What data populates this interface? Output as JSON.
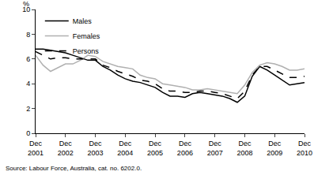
{
  "chart_data": {
    "type": "line",
    "y_label": "%",
    "source": "Source: Labour Force, Australia, cat. no. 6202.0.",
    "categories": [
      "Dec 2001",
      null,
      null,
      null,
      "Dec 2002",
      null,
      null,
      null,
      "Dec 2003",
      null,
      null,
      null,
      "Dec 2004",
      null,
      null,
      null,
      "Dec 2005",
      null,
      null,
      null,
      "Dec 2006",
      null,
      null,
      null,
      "Dec 2007",
      null,
      null,
      null,
      "Dec 2008",
      null,
      null,
      null,
      "Dec 2009",
      null,
      null,
      null,
      "Dec 2010"
    ],
    "series": [
      {
        "name": "Males",
        "color": "#000000",
        "line_style": "solid",
        "values": [
          6.8,
          6.8,
          6.7,
          6.6,
          6.5,
          6.3,
          6.1,
          5.9,
          5.9,
          5.4,
          5.1,
          4.7,
          4.4,
          4.2,
          4.1,
          3.9,
          3.7,
          3.3,
          3.0,
          3.0,
          2.9,
          3.2,
          3.3,
          3.2,
          3.1,
          3.0,
          2.8,
          2.5,
          3.0,
          4.6,
          5.4,
          5.1,
          4.7,
          4.3,
          3.9,
          4.0,
          4.1
        ]
      },
      {
        "name": "Females",
        "color": "#b0b0b0",
        "line_style": "solid",
        "values": [
          6.3,
          5.5,
          5.0,
          5.3,
          5.6,
          5.6,
          5.9,
          6.3,
          6.2,
          5.8,
          5.6,
          5.4,
          5.3,
          5.2,
          4.7,
          4.5,
          4.4,
          4.0,
          3.9,
          3.8,
          3.7,
          3.5,
          3.5,
          3.6,
          3.5,
          3.4,
          3.3,
          3.2,
          3.9,
          4.9,
          5.5,
          5.7,
          5.6,
          5.4,
          5.1,
          5.1,
          5.2
        ]
      },
      {
        "name": "Persons",
        "color": "#000000",
        "line_style": "dash",
        "values": [
          6.6,
          6.3,
          6.0,
          6.1,
          6.1,
          6.0,
          6.0,
          6.0,
          6.0,
          5.5,
          5.3,
          5.0,
          4.8,
          4.6,
          4.3,
          4.2,
          4.0,
          3.6,
          3.4,
          3.4,
          3.3,
          3.3,
          3.4,
          3.4,
          3.3,
          3.2,
          3.0,
          2.8,
          3.4,
          4.7,
          5.4,
          5.4,
          5.1,
          4.8,
          4.5,
          4.5,
          4.6
        ]
      }
    ],
    "ylim": [
      0,
      10
    ],
    "yticks": [
      0,
      2,
      4,
      6,
      8,
      10
    ],
    "grid": false,
    "legend": "top-left"
  }
}
